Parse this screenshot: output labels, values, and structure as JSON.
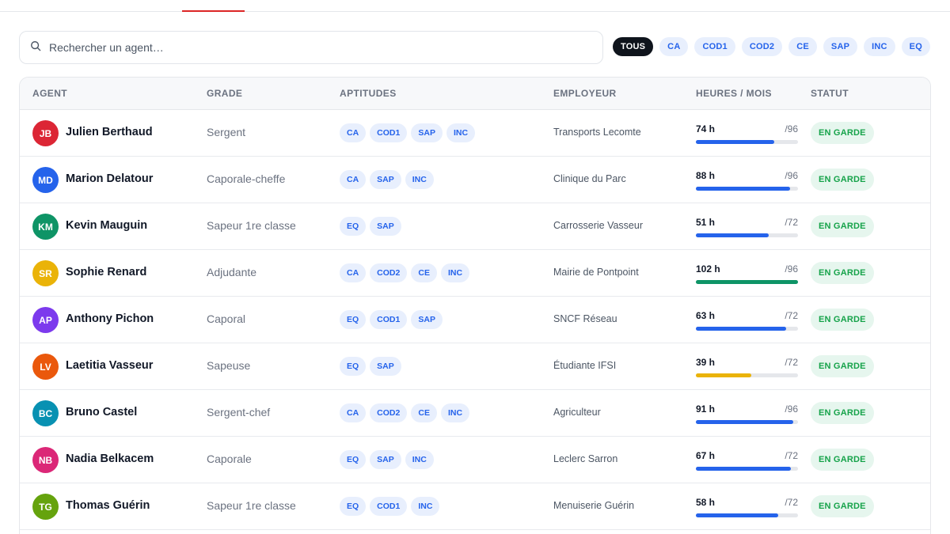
{
  "search": {
    "placeholder": "Rechercher un agent…",
    "icon": "search-icon"
  },
  "filters": [
    {
      "label": "TOUS",
      "active": true
    },
    {
      "label": "CA",
      "active": false
    },
    {
      "label": "COD1",
      "active": false
    },
    {
      "label": "COD2",
      "active": false
    },
    {
      "label": "CE",
      "active": false
    },
    {
      "label": "SAP",
      "active": false
    },
    {
      "label": "INC",
      "active": false
    },
    {
      "label": "EQ",
      "active": false
    }
  ],
  "table": {
    "headers": [
      "AGENT",
      "GRADE",
      "APTITUDES",
      "EMPLOYEUR",
      "HEURES / MOIS",
      "STATUT"
    ],
    "rows": [
      {
        "initials": "JB",
        "color": "#dc2635",
        "name": "Julien Berthaud",
        "grade": "Sergent",
        "aptitudes": [
          "CA",
          "COD1",
          "SAP",
          "INC"
        ],
        "employer": "Transports Lecomte",
        "hours": "74 h",
        "max": "/96",
        "progress": 0.77,
        "bar_color": "#2563eb",
        "status": "EN GARDE"
      },
      {
        "initials": "MD",
        "color": "#2563eb",
        "name": "Marion Delatour",
        "grade": "Caporale-cheffe",
        "aptitudes": [
          "CA",
          "SAP",
          "INC"
        ],
        "employer": "Clinique du Parc",
        "hours": "88 h",
        "max": "/96",
        "progress": 0.92,
        "bar_color": "#2563eb",
        "status": "EN GARDE"
      },
      {
        "initials": "KM",
        "color": "#0e9466",
        "name": "Kevin Mauguin",
        "grade": "Sapeur 1re classe",
        "aptitudes": [
          "EQ",
          "SAP"
        ],
        "employer": "Carrosserie Vasseur",
        "hours": "51 h",
        "max": "/72",
        "progress": 0.71,
        "bar_color": "#2563eb",
        "status": "EN GARDE"
      },
      {
        "initials": "SR",
        "color": "#eab308",
        "name": "Sophie Renard",
        "grade": "Adjudante",
        "aptitudes": [
          "CA",
          "COD2",
          "CE",
          "INC"
        ],
        "employer": "Mairie de Pontpoint",
        "hours": "102 h",
        "max": "/96",
        "progress": 1.0,
        "bar_color": "#0e9466",
        "status": "EN GARDE"
      },
      {
        "initials": "AP",
        "color": "#7c3aed",
        "name": "Anthony Pichon",
        "grade": "Caporal",
        "aptitudes": [
          "EQ",
          "COD1",
          "SAP"
        ],
        "employer": "SNCF Réseau",
        "hours": "63 h",
        "max": "/72",
        "progress": 0.88,
        "bar_color": "#2563eb",
        "status": "EN GARDE"
      },
      {
        "initials": "LV",
        "color": "#ea580c",
        "name": "Laetitia Vasseur",
        "grade": "Sapeuse",
        "aptitudes": [
          "EQ",
          "SAP"
        ],
        "employer": "Étudiante IFSI",
        "hours": "39 h",
        "max": "/72",
        "progress": 0.54,
        "bar_color": "#eab308",
        "status": "EN GARDE"
      },
      {
        "initials": "BC",
        "color": "#0891b2",
        "name": "Bruno Castel",
        "grade": "Sergent-chef",
        "aptitudes": [
          "CA",
          "COD2",
          "CE",
          "INC"
        ],
        "employer": "Agriculteur",
        "hours": "91 h",
        "max": "/96",
        "progress": 0.95,
        "bar_color": "#2563eb",
        "status": "EN GARDE"
      },
      {
        "initials": "NB",
        "color": "#db2777",
        "name": "Nadia Belkacem",
        "grade": "Caporale",
        "aptitudes": [
          "EQ",
          "SAP",
          "INC"
        ],
        "employer": "Leclerc Sarron",
        "hours": "67 h",
        "max": "/72",
        "progress": 0.93,
        "bar_color": "#2563eb",
        "status": "EN GARDE"
      },
      {
        "initials": "TG",
        "color": "#65a30d",
        "name": "Thomas Guérin",
        "grade": "Sapeur 1re classe",
        "aptitudes": [
          "EQ",
          "COD1",
          "INC"
        ],
        "employer": "Menuiserie Guérin",
        "hours": "58 h",
        "max": "/72",
        "progress": 0.81,
        "bar_color": "#2563eb",
        "status": "EN GARDE"
      }
    ]
  }
}
